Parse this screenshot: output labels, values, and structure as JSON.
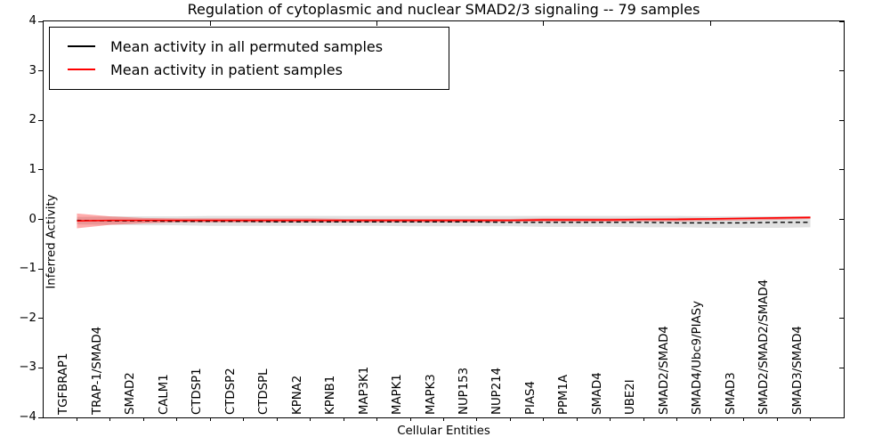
{
  "chart_data": {
    "type": "line",
    "title": "Regulation of cytoplasmic and nuclear SMAD2/3 signaling -- 79 samples",
    "xlabel": "Cellular Entities",
    "ylabel": "Inferred Activity",
    "ylim": [
      -4,
      4
    ],
    "xlim": [
      0,
      24
    ],
    "ytick_values": [
      4,
      3,
      2,
      1,
      0,
      -1,
      -2,
      -3,
      -4
    ],
    "ytick_labels": [
      "4",
      "3",
      "2",
      "1",
      "0",
      "−1",
      "−2",
      "−3",
      "−4"
    ],
    "top_tick_positions": [
      5,
      10,
      15,
      20
    ],
    "grid": false,
    "legend_position": "upper left",
    "categories": [
      "TGFBRAP1",
      "TRAP-1/SMAD4",
      "SMAD2",
      "CALM1",
      "CTDSP1",
      "CTDSP2",
      "CTDSPL",
      "KPNA2",
      "KPNB1",
      "MAP3K1",
      "MAPK1",
      "MAPK3",
      "NUP153",
      "NUP214",
      "PIAS4",
      "PPM1A",
      "SMAD4",
      "UBE2I",
      "SMAD2/SMAD4",
      "SMAD4/Ubc9/PIASy",
      "SMAD3",
      "SMAD2/SMAD2/SMAD4",
      "SMAD3/SMAD4"
    ],
    "series": [
      {
        "name": "Mean activity in all permuted samples",
        "color": "#000000",
        "line_style": "dashed",
        "values": [
          -0.02,
          -0.03,
          -0.03,
          -0.04,
          -0.04,
          -0.04,
          -0.05,
          -0.05,
          -0.05,
          -0.05,
          -0.05,
          -0.05,
          -0.05,
          -0.06,
          -0.06,
          -0.06,
          -0.06,
          -0.06,
          -0.07,
          -0.07,
          -0.07,
          -0.06,
          -0.06
        ]
      },
      {
        "name": "Mean activity in patient samples",
        "color": "#ff0000",
        "line_style": "solid",
        "values": [
          -0.03,
          -0.02,
          -0.02,
          -0.02,
          -0.02,
          -0.02,
          -0.02,
          -0.02,
          -0.02,
          -0.02,
          -0.02,
          -0.02,
          -0.02,
          -0.02,
          -0.01,
          -0.01,
          -0.01,
          0.0,
          0.0,
          0.01,
          0.02,
          0.03,
          0.04
        ]
      }
    ],
    "bands": [
      {
        "name": "permuted-samples-range",
        "color": "#999999",
        "opacity": 0.3,
        "upper": [
          0.05,
          0.06,
          0.06,
          0.06,
          0.07,
          0.07,
          0.07,
          0.07,
          0.07,
          0.07,
          0.07,
          0.07,
          0.07,
          0.07,
          0.07,
          0.07,
          0.07,
          0.07,
          0.07,
          0.06,
          0.06,
          0.06,
          0.06
        ],
        "lower": [
          -0.1,
          -0.11,
          -0.12,
          -0.12,
          -0.13,
          -0.13,
          -0.13,
          -0.13,
          -0.13,
          -0.13,
          -0.14,
          -0.14,
          -0.14,
          -0.14,
          -0.15,
          -0.15,
          -0.15,
          -0.16,
          -0.16,
          -0.17,
          -0.17,
          -0.17,
          -0.16
        ]
      },
      {
        "name": "patient-samples-range",
        "color": "#ff0000",
        "opacity": 0.33,
        "upper": [
          0.12,
          0.06,
          0.03,
          0.02,
          0.02,
          0.02,
          0.02,
          0.02,
          0.01,
          0.01,
          0.01,
          0.01,
          0.01,
          0.01,
          0.02,
          0.02,
          0.02,
          0.02,
          0.03,
          0.03,
          0.04,
          0.05,
          0.06
        ],
        "lower": [
          -0.18,
          -0.11,
          -0.08,
          -0.06,
          -0.06,
          -0.06,
          -0.06,
          -0.06,
          -0.06,
          -0.06,
          -0.06,
          -0.06,
          -0.06,
          -0.05,
          -0.05,
          -0.05,
          -0.05,
          -0.04,
          -0.04,
          -0.03,
          -0.02,
          -0.01,
          0.01
        ]
      }
    ]
  }
}
